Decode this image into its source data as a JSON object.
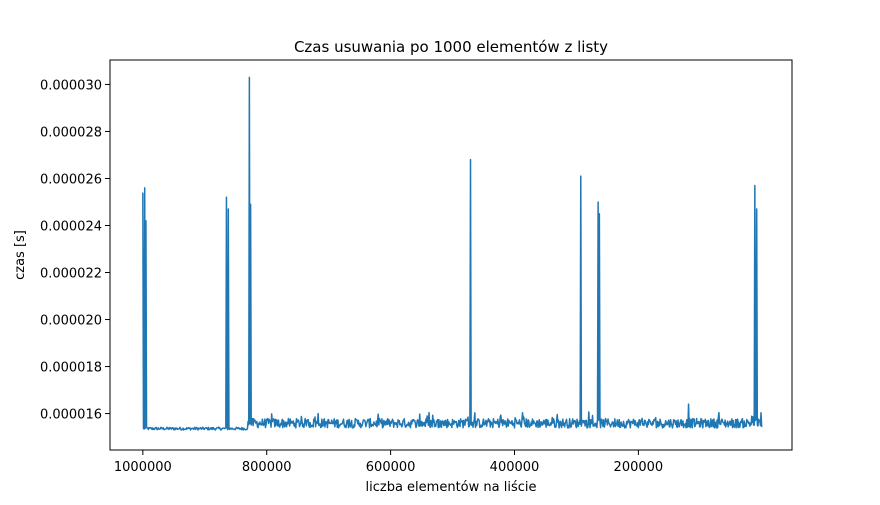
{
  "chart_data": {
    "type": "line",
    "title": "Czas usuwania po 1000 elementów z listy",
    "xlabel": "liczba elementów na liście",
    "ylabel": "czas [s]",
    "x_reversed": true,
    "xlim": [
      1053000,
      -48000
    ],
    "ylim": [
      1.445e-05,
      3.104e-05
    ],
    "x_tick_values": [
      1000000,
      800000,
      600000,
      400000,
      200000
    ],
    "x_tick_labels": [
      "1000000",
      "800000",
      "600000",
      "400000",
      "200000"
    ],
    "y_tick_values": [
      1.6e-05,
      1.8e-05,
      2e-05,
      2.2e-05,
      2.4e-05,
      2.6e-05,
      2.8e-05,
      3e-05
    ],
    "y_tick_labels": [
      "0.000016",
      "0.000018",
      "0.000020",
      "0.000022",
      "0.000024",
      "0.000026",
      "0.000028",
      "0.000030"
    ],
    "grid": false,
    "series": [
      {
        "color": "#1f77b4",
        "x_start": 1000000,
        "x_end": 1000,
        "x_step": -1000,
        "baseline_low": 1.53e-05,
        "baseline_high": 1.56e-05,
        "spikes": [
          {
            "x": 1000000,
            "y": 2.54e-05
          },
          {
            "x": 997000,
            "y": 2.56e-05
          },
          {
            "x": 995000,
            "y": 2.42e-05
          },
          {
            "x": 865000,
            "y": 2.52e-05
          },
          {
            "x": 862000,
            "y": 2.47e-05
          },
          {
            "x": 828000,
            "y": 3.03e-05
          },
          {
            "x": 826000,
            "y": 2.49e-05
          },
          {
            "x": 471000,
            "y": 2.68e-05
          },
          {
            "x": 293000,
            "y": 2.61e-05
          },
          {
            "x": 265000,
            "y": 2.5e-05
          },
          {
            "x": 263000,
            "y": 2.45e-05
          },
          {
            "x": 119000,
            "y": 1.64e-05
          },
          {
            "x": 12000,
            "y": 2.57e-05
          },
          {
            "x": 9000,
            "y": 2.47e-05
          }
        ]
      }
    ]
  }
}
